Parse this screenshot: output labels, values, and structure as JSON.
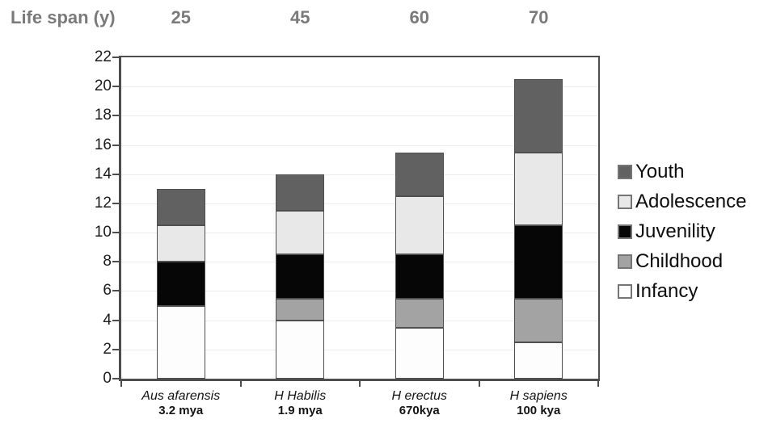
{
  "header": {
    "title": "Life span (y)",
    "lifespan_values": [
      "25",
      "45",
      "60",
      "70"
    ]
  },
  "chart_data": {
    "type": "bar",
    "stacked": true,
    "title": "",
    "xlabel": "",
    "ylabel": "",
    "categories": [
      {
        "species": "Aus afarensis",
        "age": "3.2 mya"
      },
      {
        "species": "H Habilis",
        "age": "1.9 mya"
      },
      {
        "species": "H erectus",
        "age": "670kya"
      },
      {
        "species": "H sapiens",
        "age": "100 kya"
      }
    ],
    "life_spans_years": [
      25,
      45,
      60,
      70
    ],
    "series": [
      {
        "name": "Infancy",
        "color": "#fdfdfd",
        "values": [
          5,
          4,
          3.5,
          2.5
        ]
      },
      {
        "name": "Childhood",
        "color": "#a3a3a3",
        "values": [
          0,
          1.5,
          2,
          3
        ]
      },
      {
        "name": "Juvenility",
        "color": "#060606",
        "values": [
          3,
          3,
          3,
          5
        ]
      },
      {
        "name": "Adolescence",
        "color": "#e8e8e8",
        "values": [
          2.5,
          3,
          4,
          5
        ]
      },
      {
        "name": "Youth",
        "color": "#616161",
        "values": [
          2.5,
          2.5,
          3,
          5
        ]
      }
    ],
    "series_order": "bottom-to-top",
    "bar_totals": [
      13,
      14,
      15.5,
      20.5
    ],
    "y_axis": {
      "min": 0,
      "max": 22,
      "tick_step": 2,
      "tick_labels": [
        "0",
        "2",
        "4",
        "6",
        "8",
        "10",
        "12",
        "14",
        "16",
        "18",
        "20",
        "22"
      ]
    },
    "legend": {
      "position": "right",
      "order_top_to_bottom": [
        "Youth",
        "Adolescence",
        "Juvenility",
        "Childhood",
        "Infancy"
      ]
    },
    "grid": true
  },
  "colors": {
    "axis": "#4d4d4d",
    "gridline": "#ededed",
    "header_text": "#7a7a7a",
    "tick_label_text": "#1c1c1c",
    "legend_text": "#0d0d0d"
  }
}
